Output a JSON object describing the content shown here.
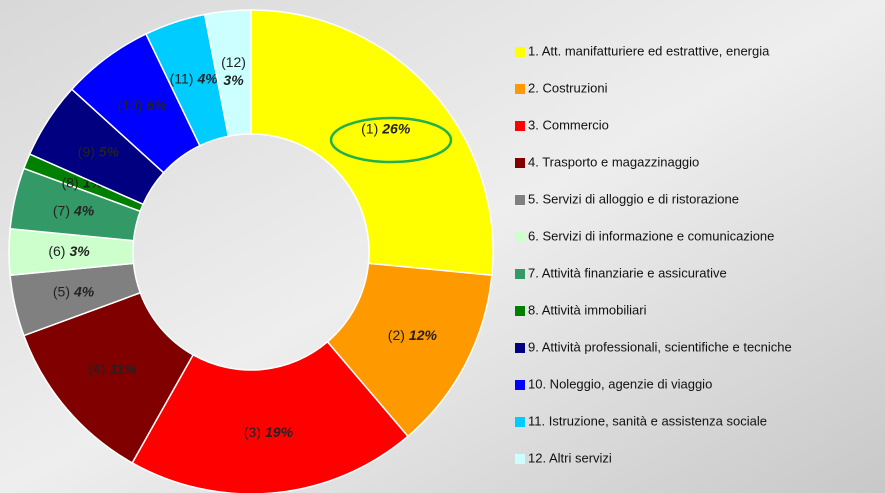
{
  "chart_data": {
    "type": "donut",
    "categories": [
      "1. Att. manifatturiere ed estrattive, energia",
      "2. Costruzioni",
      "3. Commercio",
      "4. Trasporto e magazzinaggio",
      "5. Servizi di alloggio e di ristorazione",
      "6. Servizi di informazione e comunicazione",
      "7. Attività finanziarie e assicurative",
      "8. Attività immobiliari",
      "9. Attività professionali, scientifiche e tecniche",
      "10. Noleggio, agenzie di viaggio",
      "11. Istruzione, sanità e assistenza sociale",
      "12. Altri servizi"
    ],
    "labels": [
      "(1)",
      "(2)",
      "(3)",
      "(4)",
      "(5)",
      "(6)",
      "(7)",
      "(8)",
      "(9)",
      "(10)",
      "(11)",
      "(12)"
    ],
    "values": [
      26,
      12,
      19,
      11,
      4,
      3,
      4,
      1,
      5,
      6,
      4,
      3
    ],
    "value_labels": [
      "26%",
      "12%",
      "19%",
      "11%",
      "4%",
      "3%",
      "4%",
      "1%",
      "5%",
      "6%",
      "4%",
      "3%"
    ],
    "colors": [
      "#ffff00",
      "#ff9900",
      "#ff0000",
      "#800000",
      "#808080",
      "#ccffcc",
      "#339966",
      "#008000",
      "#000080",
      "#0000ff",
      "#00ccff",
      "#ccffff"
    ],
    "legend": "right"
  }
}
